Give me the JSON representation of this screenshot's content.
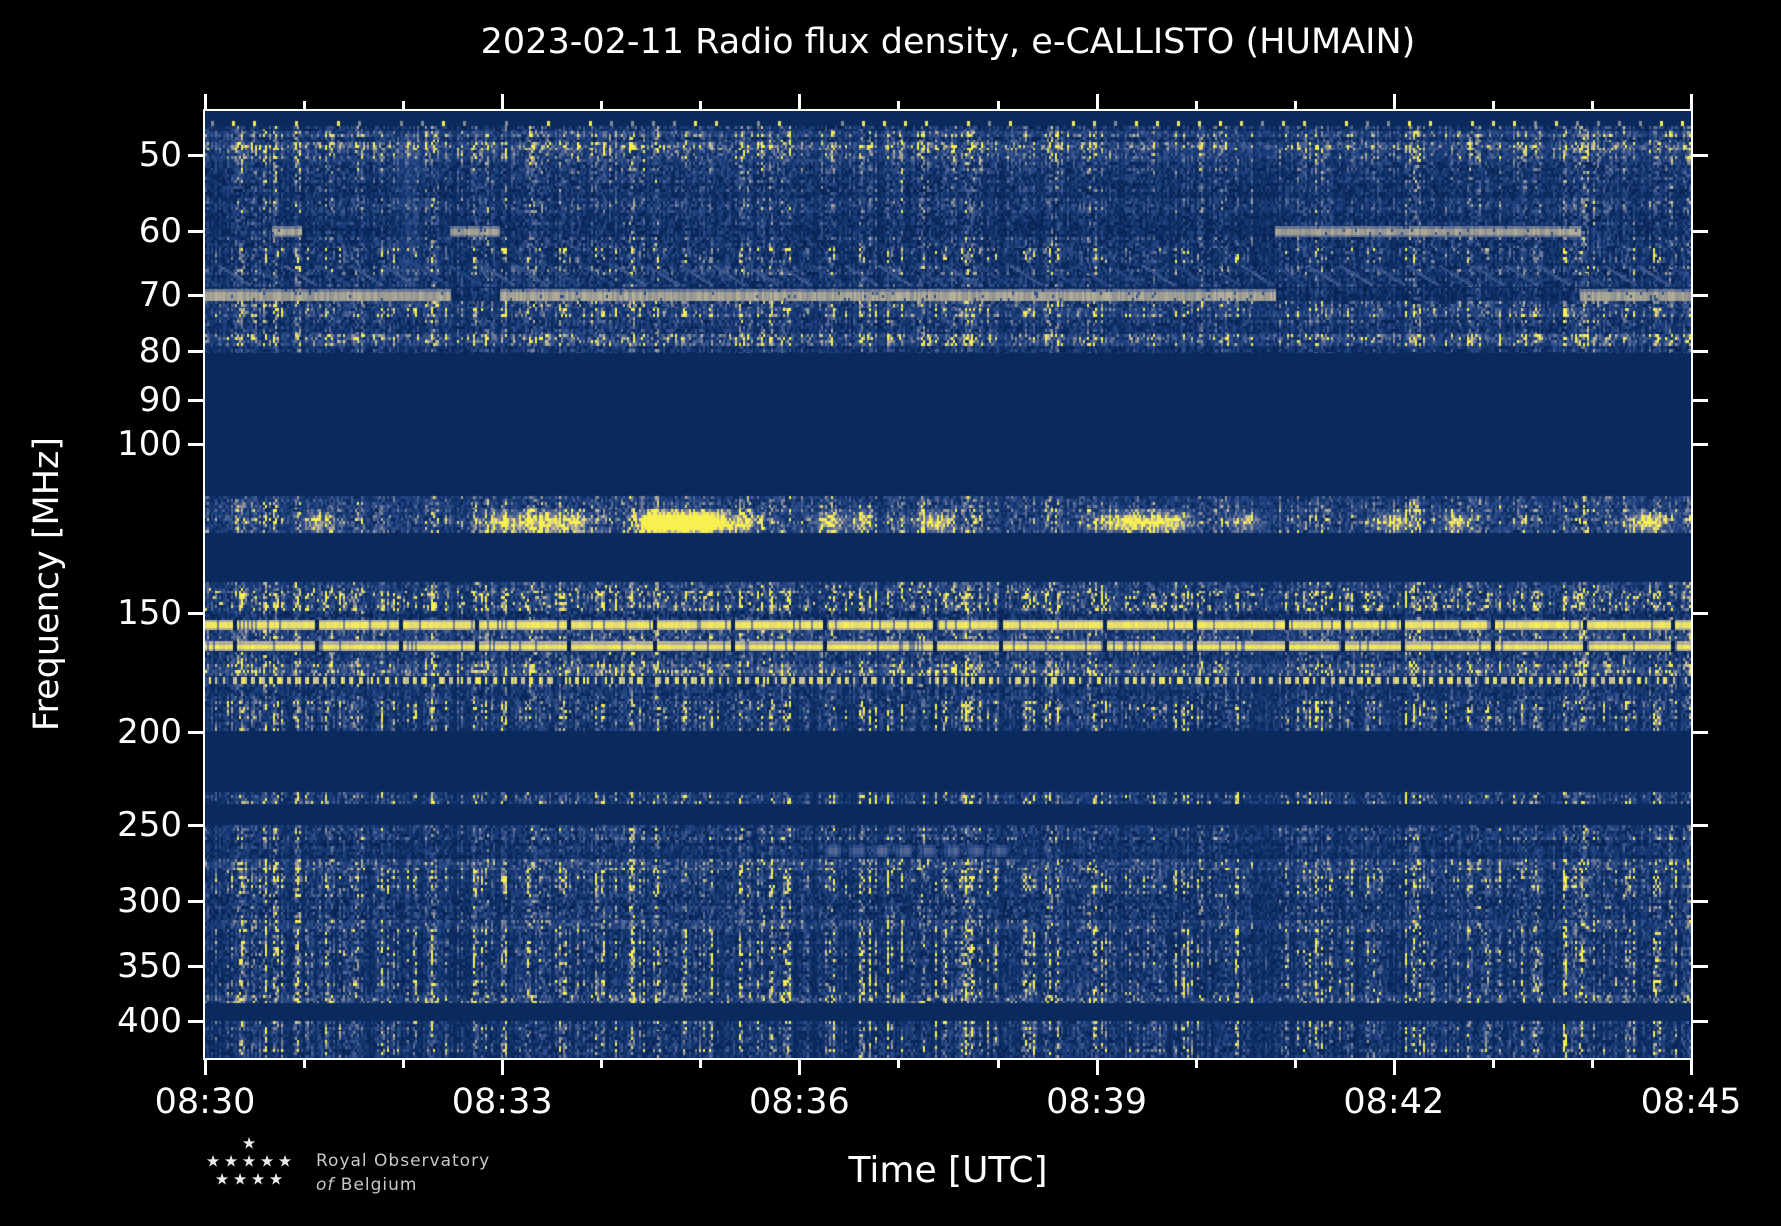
{
  "chart_data": {
    "type": "heatmap",
    "subtype": "radio-spectrogram",
    "title": "2023-02-11 Radio flux density, e-CALLISTO (HUMAIN)",
    "xlabel": "Time [UTC]",
    "ylabel": "Frequency [MHz]",
    "x_range_min": [
      0,
      15
    ],
    "x_start_label": "08:30",
    "x_ticks_major": [
      {
        "minute": 0,
        "label": "08:30"
      },
      {
        "minute": 3,
        "label": "08:33"
      },
      {
        "minute": 6,
        "label": "08:36"
      },
      {
        "minute": 9,
        "label": "08:39"
      },
      {
        "minute": 12,
        "label": "08:42"
      },
      {
        "minute": 15,
        "label": "08:45"
      }
    ],
    "x_minor_interval_min": 1,
    "y_scale": "log",
    "y_range_mhz": [
      45,
      437
    ],
    "y_ticks": [
      50,
      60,
      70,
      80,
      90,
      100,
      150,
      200,
      250,
      300,
      350,
      400
    ],
    "grid": false,
    "legend": "none",
    "palette": [
      [
        0.0,
        "#071e4a"
      ],
      [
        0.18,
        "#0a2a5e"
      ],
      [
        0.38,
        "#1c3f7d"
      ],
      [
        0.55,
        "#33518a"
      ],
      [
        0.7,
        "#5d6d97"
      ],
      [
        0.82,
        "#98988f"
      ],
      [
        0.92,
        "#c6bfa0"
      ],
      [
        1.0,
        "#f8ef4f"
      ]
    ],
    "column_events": [
      {
        "t_min": 2.05,
        "w_min": 0.12,
        "strength": 0.16,
        "f": [
          48,
          71
        ]
      }
    ],
    "line_interruptions": {
      "start_min": 0.3,
      "mean_step_min": 0.85
    },
    "bands": [
      {
        "f": [
          45.0,
          45.9
        ],
        "style": "quiet",
        "base": 0.16
      },
      {
        "f": [
          45.9,
          46.7
        ],
        "style": "dots",
        "base": 0.16,
        "dot_spacing_min": 0.212
      },
      {
        "f": [
          46.7,
          47.2
        ],
        "style": "noise",
        "base": 0.2,
        "spread": 0.45
      },
      {
        "f": [
          47.2,
          47.9
        ],
        "style": "noise",
        "base": 0.4,
        "spread": 0.6
      },
      {
        "f": [
          47.9,
          48.5
        ],
        "style": "noise",
        "base": 0.22,
        "spread": 0.5
      },
      {
        "f": [
          48.5,
          49.4
        ],
        "style": "noise",
        "base": 0.42,
        "spread": 0.6
      },
      {
        "f": [
          49.4,
          50.8
        ],
        "style": "noise",
        "base": 0.34,
        "spread": 0.5
      },
      {
        "f": [
          50.8,
          53.5
        ],
        "style": "noise",
        "base": 0.24,
        "spread": 0.5
      },
      {
        "f": [
          53.5,
          55.5
        ],
        "style": "noise",
        "base": 0.2,
        "spread": 0.45
      },
      {
        "f": [
          55.5,
          57.5
        ],
        "style": "noise",
        "base": 0.26,
        "spread": 0.5
      },
      {
        "f": [
          57.5,
          59.2
        ],
        "style": "noise",
        "base": 0.2,
        "spread": 0.45
      },
      {
        "f": [
          59.2,
          60.9
        ],
        "style": "carrier",
        "base": 0.2,
        "spread": 0.45,
        "on": [
          [
            0.68,
            0.98
          ],
          [
            2.47,
            2.98
          ],
          [
            10.8,
            13.88
          ]
        ]
      },
      {
        "f": [
          60.9,
          62.5
        ],
        "style": "noise",
        "base": 0.22,
        "spread": 0.5
      },
      {
        "f": [
          62.5,
          64.8
        ],
        "style": "noise",
        "base": 0.26,
        "spread": 0.55,
        "striate": true
      },
      {
        "f": [
          64.8,
          68.5
        ],
        "style": "hatch",
        "base": 0.22,
        "spread": 0.5,
        "slash_spacing_px": 33
      },
      {
        "f": [
          68.8,
          71.0
        ],
        "style": "carrier",
        "base": 0.18,
        "spread": 0.4,
        "on": [
          [
            0,
            2.47
          ],
          [
            2.98,
            10.8
          ],
          [
            13.88,
            15
          ]
        ]
      },
      {
        "f": [
          71.0,
          72.2
        ],
        "style": "noise",
        "base": 0.3,
        "spread": 0.55
      },
      {
        "f": [
          72.2,
          73.8
        ],
        "style": "noise",
        "base": 0.38,
        "spread": 0.6,
        "striate": true
      },
      {
        "f": [
          73.8,
          76.8
        ],
        "style": "noise",
        "base": 0.24,
        "spread": 0.5
      },
      {
        "f": [
          76.8,
          79.2
        ],
        "style": "noise",
        "base": 0.38,
        "spread": 0.6
      },
      {
        "f": [
          79.2,
          80.5
        ],
        "style": "noise",
        "base": 0.22,
        "spread": 0.45
      },
      {
        "f": [
          80.5,
          113.5
        ],
        "style": "quiet",
        "base": 0.17
      },
      {
        "f": [
          113.5,
          117.0
        ],
        "style": "noise",
        "base": 0.32,
        "spread": 0.55
      },
      {
        "f": [
          117.0,
          124.0
        ],
        "style": "burst",
        "base": 0.34,
        "spread": 0.6,
        "blobs": [
          [
            1.12,
            0.15,
            0.45
          ],
          [
            3.0,
            0.2,
            0.55
          ],
          [
            3.3,
            0.15,
            0.5
          ],
          [
            3.52,
            0.12,
            0.55
          ],
          [
            3.74,
            0.12,
            0.5
          ],
          [
            4.5,
            0.15,
            0.65
          ],
          [
            4.75,
            0.3,
            1.0
          ],
          [
            5.05,
            0.18,
            0.8
          ],
          [
            5.4,
            0.2,
            0.55
          ],
          [
            6.3,
            0.15,
            0.5
          ],
          [
            6.62,
            0.12,
            0.45
          ],
          [
            7.35,
            0.2,
            0.5
          ],
          [
            9.3,
            0.35,
            0.65
          ],
          [
            9.75,
            0.2,
            0.5
          ],
          [
            10.5,
            0.15,
            0.45
          ],
          [
            12.0,
            0.2,
            0.5
          ],
          [
            12.62,
            0.15,
            0.45
          ],
          [
            14.55,
            0.2,
            0.6
          ]
        ]
      },
      {
        "f": [
          124.0,
          139.5
        ],
        "style": "quiet",
        "base": 0.17
      },
      {
        "f": [
          139.5,
          143.0
        ],
        "style": "noise",
        "base": 0.34,
        "spread": 0.6,
        "yellow": 0.02
      },
      {
        "f": [
          143.0,
          149.5
        ],
        "style": "noise",
        "base": 0.36,
        "spread": 0.65,
        "yellow": 0.05,
        "striate": true
      },
      {
        "f": [
          149.5,
          152.8
        ],
        "style": "noise",
        "base": 0.2,
        "spread": 0.45
      },
      {
        "f": [
          152.8,
          155.9
        ],
        "style": "line"
      },
      {
        "f": [
          156.3,
          160.3
        ],
        "style": "noise",
        "base": 0.34,
        "spread": 0.55
      },
      {
        "f": [
          160.5,
          164.4
        ],
        "style": "line"
      },
      {
        "f": [
          164.8,
          169.8
        ],
        "style": "noise",
        "base": 0.28,
        "spread": 0.55
      },
      {
        "f": [
          169.8,
          174.2
        ],
        "style": "noise",
        "base": 0.45,
        "spread": 0.6
      },
      {
        "f": [
          175.3,
          178.0
        ],
        "style": "dashline"
      },
      {
        "f": [
          178.0,
          185.5
        ],
        "style": "noise",
        "base": 0.26,
        "spread": 0.5
      },
      {
        "f": [
          185.5,
          199.0
        ],
        "style": "noise",
        "base": 0.3,
        "spread": 0.6,
        "striate": true
      },
      {
        "f": [
          199.5,
          230.5
        ],
        "style": "quiet",
        "base": 0.17
      },
      {
        "f": [
          230.5,
          237.5
        ],
        "style": "noise",
        "base": 0.3,
        "spread": 0.55,
        "striate": true
      },
      {
        "f": [
          237.5,
          249.5
        ],
        "style": "quiet",
        "base": 0.17
      },
      {
        "f": [
          249.5,
          259.0
        ],
        "style": "noise",
        "base": 0.27,
        "spread": 0.55
      },
      {
        "f": [
          259.0,
          271.0
        ],
        "style": "dashrow",
        "base": 0.18,
        "spread": 0.4,
        "dash_from": 6.26,
        "dash_to": 8.12,
        "dash_on": 0.16,
        "dash_off": 0.08
      },
      {
        "f": [
          271.0,
          278.5
        ],
        "style": "noise",
        "base": 0.36,
        "spread": 0.55
      },
      {
        "f": [
          278.5,
          295.0
        ],
        "style": "noise",
        "base": 0.3,
        "spread": 0.55,
        "striate": true
      },
      {
        "f": [
          295.0,
          313.5
        ],
        "style": "noise",
        "base": 0.23,
        "spread": 0.55
      },
      {
        "f": [
          313.5,
          321.0
        ],
        "style": "noise",
        "base": 0.34,
        "spread": 0.55
      },
      {
        "f": [
          321.0,
          376.0
        ],
        "style": "noise",
        "base": 0.27,
        "spread": 0.55,
        "striate": true
      },
      {
        "f": [
          376.0,
          383.0
        ],
        "style": "noise",
        "base": 0.34,
        "spread": 0.55
      },
      {
        "f": [
          383.0,
          399.5
        ],
        "style": "quiet",
        "base": 0.17
      },
      {
        "f": [
          399.5,
          410.0
        ],
        "style": "noise",
        "base": 0.28,
        "spread": 0.5,
        "striate": true
      },
      {
        "f": [
          410.0,
          437.0
        ],
        "style": "noise",
        "base": 0.25,
        "spread": 0.55,
        "striate": true
      }
    ]
  },
  "logo": {
    "line1": "Royal Observatory",
    "line2_italic": "of",
    "line2": "Belgium",
    "star_rows": [
      1,
      5,
      4
    ]
  }
}
